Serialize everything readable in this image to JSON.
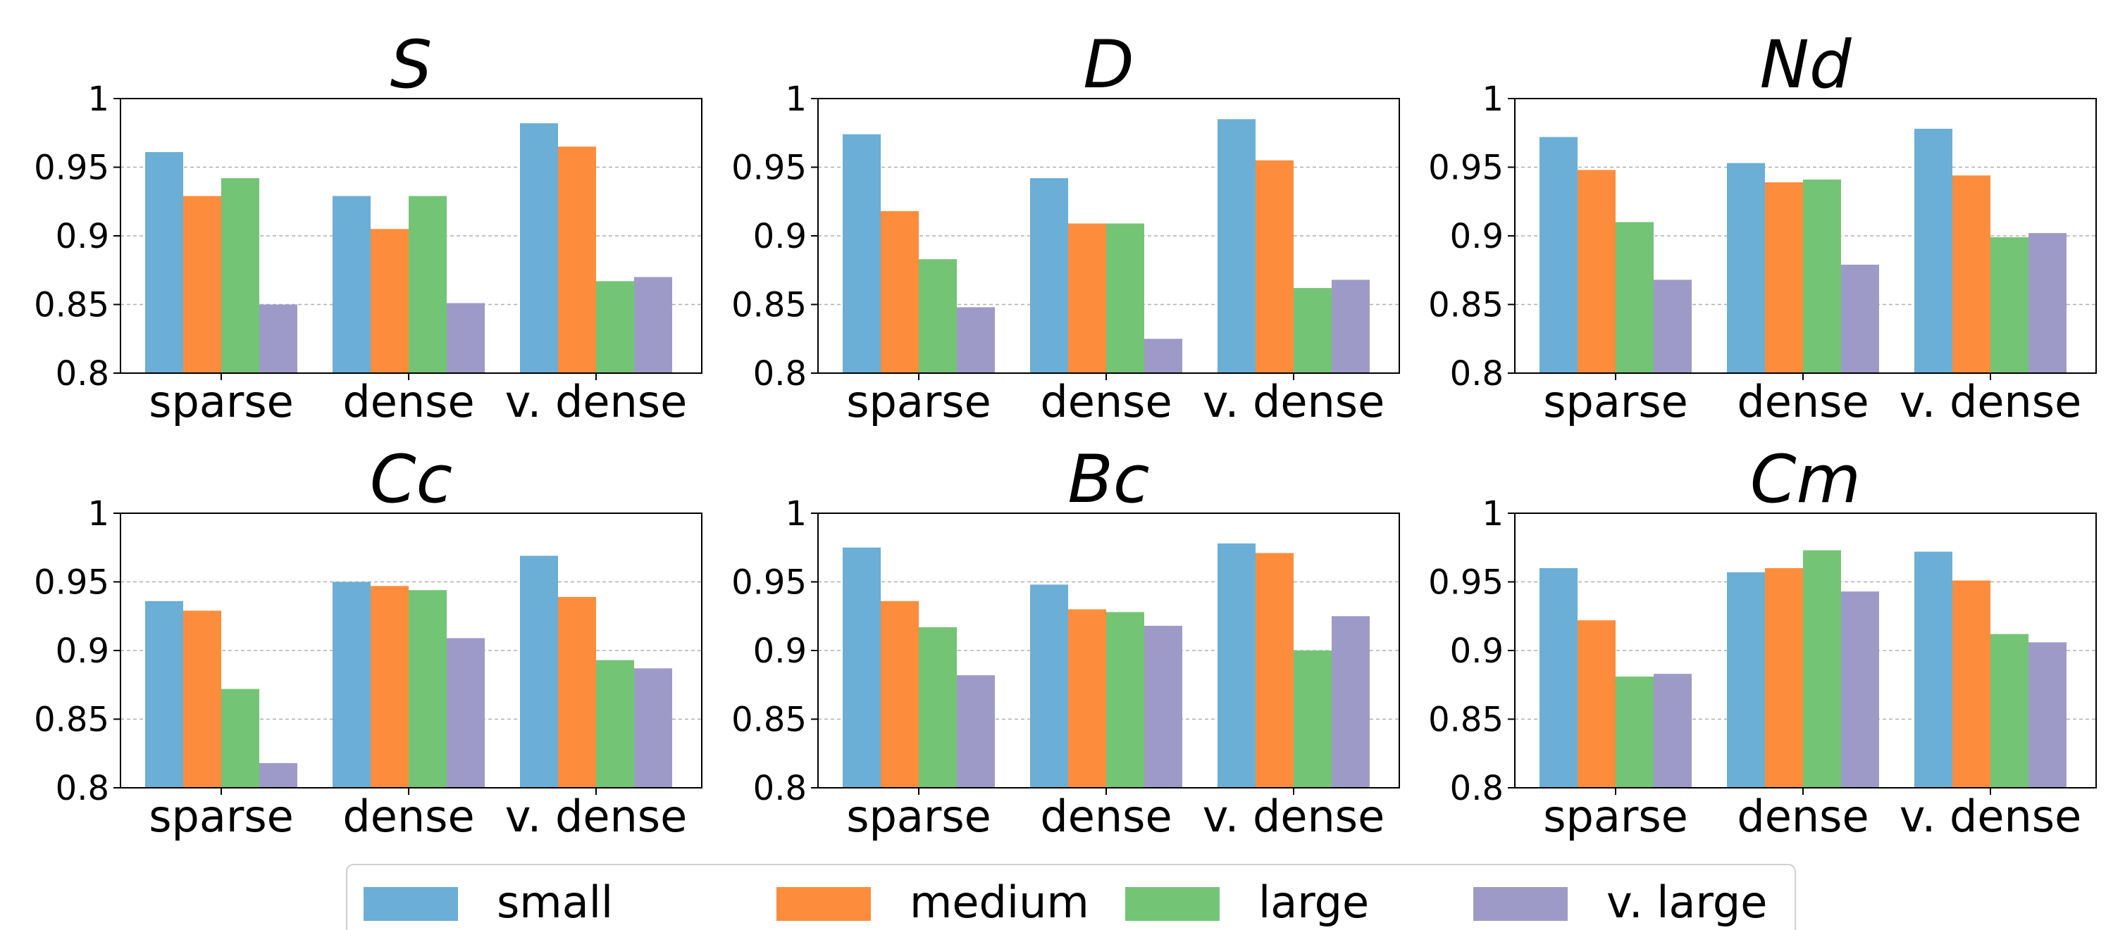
{
  "colors": {
    "small": "#6baed6",
    "medium": "#fd8d3c",
    "large": "#74c476",
    "v_large": "#9e9ac8"
  },
  "legend": {
    "entries": [
      "small",
      "medium",
      "large",
      "v. large"
    ]
  },
  "chart_data": [
    {
      "type": "bar",
      "title": "S",
      "categories": [
        "sparse",
        "dense",
        "v. dense"
      ],
      "ylim": [
        0.8,
        1
      ],
      "yticks": [
        "0.8",
        "0.85",
        "0.9",
        "0.95",
        "1"
      ],
      "grid": true,
      "series": [
        {
          "name": "small",
          "values": [
            0.961,
            0.929,
            0.982
          ]
        },
        {
          "name": "medium",
          "values": [
            0.929,
            0.905,
            0.965
          ]
        },
        {
          "name": "large",
          "values": [
            0.942,
            0.929,
            0.867
          ]
        },
        {
          "name": "v. large",
          "values": [
            0.85,
            0.851,
            0.87
          ]
        }
      ]
    },
    {
      "type": "bar",
      "title": "D",
      "categories": [
        "sparse",
        "dense",
        "v. dense"
      ],
      "ylim": [
        0.8,
        1
      ],
      "yticks": [
        "0.8",
        "0.85",
        "0.9",
        "0.95",
        "1"
      ],
      "grid": true,
      "series": [
        {
          "name": "small",
          "values": [
            0.974,
            0.942,
            0.985
          ]
        },
        {
          "name": "medium",
          "values": [
            0.918,
            0.909,
            0.955
          ]
        },
        {
          "name": "large",
          "values": [
            0.883,
            0.909,
            0.862
          ]
        },
        {
          "name": "v. large",
          "values": [
            0.848,
            0.825,
            0.868
          ]
        }
      ]
    },
    {
      "type": "bar",
      "title": "Nd",
      "categories": [
        "sparse",
        "dense",
        "v. dense"
      ],
      "ylim": [
        0.8,
        1
      ],
      "yticks": [
        "0.8",
        "0.85",
        "0.9",
        "0.95",
        "1"
      ],
      "grid": true,
      "series": [
        {
          "name": "small",
          "values": [
            0.972,
            0.953,
            0.978
          ]
        },
        {
          "name": "medium",
          "values": [
            0.948,
            0.939,
            0.944
          ]
        },
        {
          "name": "large",
          "values": [
            0.91,
            0.941,
            0.899
          ]
        },
        {
          "name": "v. large",
          "values": [
            0.868,
            0.879,
            0.902
          ]
        }
      ]
    },
    {
      "type": "bar",
      "title": "Cc",
      "categories": [
        "sparse",
        "dense",
        "v. dense"
      ],
      "ylim": [
        0.8,
        1
      ],
      "yticks": [
        "0.8",
        "0.85",
        "0.9",
        "0.95",
        "1"
      ],
      "grid": true,
      "series": [
        {
          "name": "small",
          "values": [
            0.936,
            0.95,
            0.969
          ]
        },
        {
          "name": "medium",
          "values": [
            0.929,
            0.947,
            0.939
          ]
        },
        {
          "name": "large",
          "values": [
            0.872,
            0.944,
            0.893
          ]
        },
        {
          "name": "v. large",
          "values": [
            0.818,
            0.909,
            0.887
          ]
        }
      ]
    },
    {
      "type": "bar",
      "title": "Bc",
      "categories": [
        "sparse",
        "dense",
        "v. dense"
      ],
      "ylim": [
        0.8,
        1
      ],
      "yticks": [
        "0.8",
        "0.85",
        "0.9",
        "0.95",
        "1"
      ],
      "grid": true,
      "series": [
        {
          "name": "small",
          "values": [
            0.975,
            0.948,
            0.978
          ]
        },
        {
          "name": "medium",
          "values": [
            0.936,
            0.93,
            0.971
          ]
        },
        {
          "name": "large",
          "values": [
            0.917,
            0.928,
            0.9
          ]
        },
        {
          "name": "v. large",
          "values": [
            0.882,
            0.918,
            0.925
          ]
        }
      ]
    },
    {
      "type": "bar",
      "title": "Cm",
      "categories": [
        "sparse",
        "dense",
        "v. dense"
      ],
      "ylim": [
        0.8,
        1
      ],
      "yticks": [
        "0.8",
        "0.85",
        "0.9",
        "0.95",
        "1"
      ],
      "grid": true,
      "series": [
        {
          "name": "small",
          "values": [
            0.96,
            0.957,
            0.972
          ]
        },
        {
          "name": "medium",
          "values": [
            0.922,
            0.96,
            0.951
          ]
        },
        {
          "name": "large",
          "values": [
            0.881,
            0.973,
            0.912
          ]
        },
        {
          "name": "v. large",
          "values": [
            0.883,
            0.943,
            0.906
          ]
        }
      ]
    }
  ]
}
